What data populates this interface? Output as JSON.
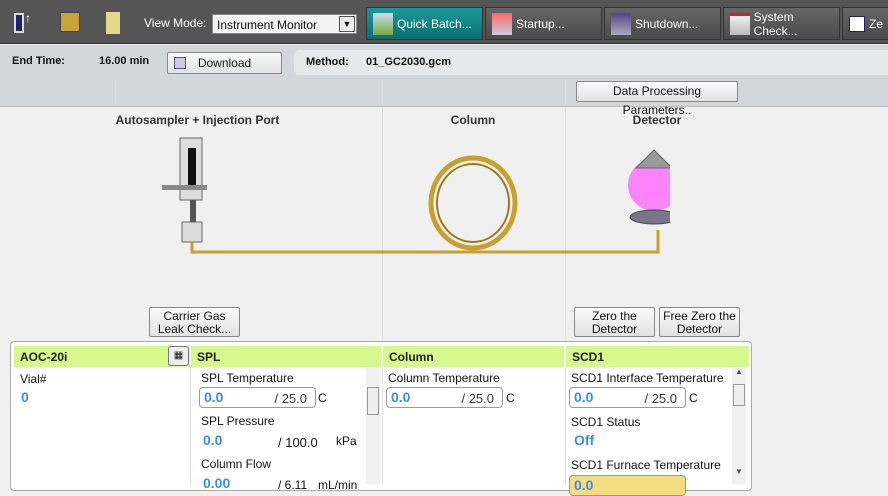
{
  "toolbar": {
    "view_mode_label": "View Mode:",
    "view_mode_value": "Instrument Monitor",
    "buttons": [
      {
        "label": "Quick Batch...",
        "icon": "quick-batch-icon"
      },
      {
        "label": "Startup...",
        "icon": "startup-icon"
      },
      {
        "label": "Shutdown...",
        "icon": "shutdown-icon"
      },
      {
        "label": "System Check...",
        "icon": "system-check-icon"
      },
      {
        "label": "Ze",
        "icon": "zero-icon"
      }
    ]
  },
  "info": {
    "end_time_label": "End Time:",
    "end_time_value": "16.00 min",
    "download_label": "Download",
    "method_label": "Method:",
    "method_value": "01_GC2030.gcm",
    "dpp_label": "Data Processing Parameters.."
  },
  "diagram": {
    "autosampler": "Autosampler + Injection Port",
    "column": "Column",
    "detector": "Detector",
    "carrier_gas_button": "Carrier Gas\nLeak Check...",
    "zero_detector_button": "Zero the\nDetector",
    "free_zero_button": "Free Zero the\nDetector",
    "detector_glow_color": "#ff40ff",
    "column_color": "#c8a030"
  },
  "panels": {
    "aoc": {
      "title": "AOC-20i",
      "vial_label": "Vial#",
      "vial_value": "0"
    },
    "spl": {
      "title": "SPL",
      "temp_label": "SPL Temperature",
      "temp_value": "0.0",
      "temp_set": "/ 25.0",
      "temp_unit": "C",
      "pres_label": "SPL Pressure",
      "pres_value": "0.0",
      "pres_set": "/ 100.0",
      "pres_unit": "kPa",
      "flow_label": "Column Flow",
      "flow_value": "0.00",
      "flow_set": "/ 6.11",
      "flow_unit": "mL/min"
    },
    "column": {
      "title": "Column",
      "temp_label": "Column Temperature",
      "temp_value": "0.0",
      "temp_set": "/ 25.0",
      "temp_unit": "C"
    },
    "scd": {
      "title": "SCD1",
      "if_label": "SCD1 Interface Temperature",
      "if_value": "0.0",
      "if_set": "/ 25.0",
      "if_unit": "C",
      "status_label": "SCD1 Status",
      "status_value": "Off",
      "furnace_label": "SCD1 Furnace Temperature",
      "furnace_value": "0.0"
    }
  }
}
